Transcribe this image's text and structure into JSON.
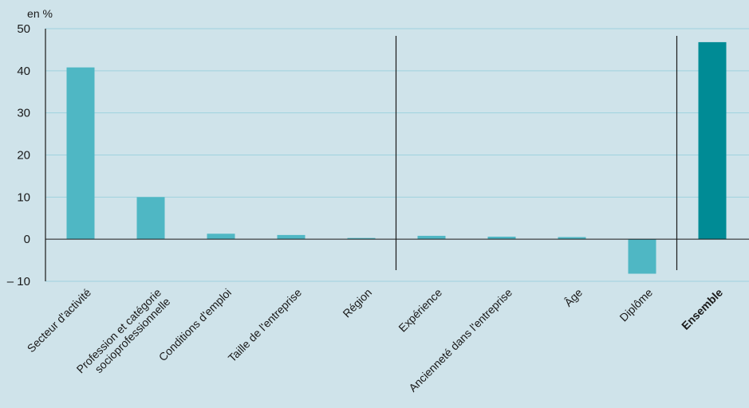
{
  "chart_data": {
    "type": "bar",
    "unit_label": "en %",
    "ylim": [
      -10,
      50
    ],
    "yticks": [
      50,
      40,
      30,
      20,
      10,
      0,
      -10
    ],
    "ytick_labels": [
      "50",
      "40",
      "30",
      "20",
      "10",
      "0",
      "– 10"
    ],
    "grid": true,
    "categories": [
      [
        "Secteur d'activité"
      ],
      [
        "Profession et catégorie",
        "socioprofessionnelle"
      ],
      [
        "Conditions d'emploi"
      ],
      [
        "Taille de l'entreprise"
      ],
      [
        "Région"
      ],
      [
        "Expérience"
      ],
      [
        "Ancienneté dans l'entreprise"
      ],
      [
        "Âge"
      ],
      [
        "Diplôme"
      ],
      [
        "Ensemble"
      ]
    ],
    "values": [
      40.8,
      10.0,
      1.3,
      1.0,
      0.2,
      0.8,
      0.6,
      0.5,
      -8.2,
      46.8
    ],
    "bold_categories": [
      9
    ],
    "highlight_categories": [
      9
    ],
    "separators_after": [
      4,
      8
    ],
    "colors": {
      "background": "#cfe3ea",
      "bar": "#4fb7c4",
      "bar_highlight": "#008b95",
      "grid": "#9fd2de",
      "axis": "#1a1a1a"
    }
  }
}
